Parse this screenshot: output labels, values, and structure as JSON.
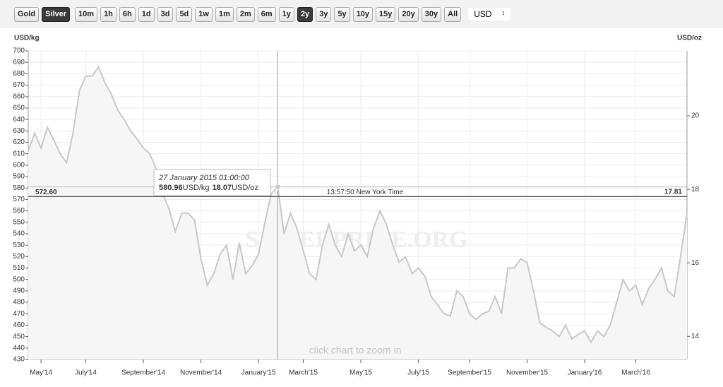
{
  "toolbar": {
    "buttons": [
      {
        "label": "Gold",
        "active": false
      },
      {
        "label": "Silver",
        "active": true
      },
      {
        "label": "10m",
        "active": false
      },
      {
        "label": "1h",
        "active": false
      },
      {
        "label": "6h",
        "active": false
      },
      {
        "label": "1d",
        "active": false
      },
      {
        "label": "3d",
        "active": false
      },
      {
        "label": "5d",
        "active": false
      },
      {
        "label": "1w",
        "active": false
      },
      {
        "label": "1m",
        "active": false
      },
      {
        "label": "2m",
        "active": false
      },
      {
        "label": "6m",
        "active": false
      },
      {
        "label": "1y",
        "active": false
      },
      {
        "label": "2y",
        "active": true
      },
      {
        "label": "3y",
        "active": false
      },
      {
        "label": "5y",
        "active": false
      },
      {
        "label": "10y",
        "active": false
      },
      {
        "label": "15y",
        "active": false
      },
      {
        "label": "20y",
        "active": false
      },
      {
        "label": "30y",
        "active": false
      },
      {
        "label": "All",
        "active": false
      }
    ],
    "currency": "USD"
  },
  "chart_data": {
    "type": "line",
    "y_axis_label": "USD/kg",
    "y2_axis_label": "USD/oz",
    "watermark": "SILVERPRICE.ORG",
    "hint": "click chart to zoom in",
    "categories": [
      null,
      null,
      "May'14",
      null,
      null,
      null,
      null,
      null,
      null,
      "July'14",
      null,
      null,
      null,
      null,
      null,
      null,
      null,
      null,
      "September'14",
      null,
      null,
      null,
      null,
      null,
      null,
      null,
      null,
      "November'14",
      null,
      null,
      null,
      null,
      null,
      null,
      null,
      null,
      "January'15",
      null,
      null,
      null,
      null,
      null,
      null,
      "March'15",
      null,
      null,
      null,
      null,
      null,
      null,
      null,
      null,
      "May'15",
      null,
      null,
      null,
      null,
      null,
      null,
      null,
      null,
      "July'15",
      null,
      null,
      null,
      null,
      null,
      null,
      null,
      "September'15",
      null,
      null,
      null,
      null,
      null,
      null,
      null,
      null,
      "November'15",
      null,
      null,
      null,
      null,
      null,
      null,
      null,
      null,
      "January'16",
      null,
      null,
      null,
      null,
      null,
      null,
      null,
      "March'16",
      null,
      null,
      null,
      null,
      null,
      null,
      null,
      null
    ],
    "series": [
      {
        "color": "#c8c8c8",
        "values": [
          612,
          628,
          615,
          633,
          622,
          610,
          602,
          628,
          665,
          678,
          678,
          686,
          672,
          662,
          648,
          640,
          630,
          623,
          615,
          610,
          597,
          575,
          562,
          542,
          558,
          558,
          552,
          518,
          495,
          505,
          522,
          530,
          500,
          532,
          505,
          512,
          522,
          550,
          575,
          580.96,
          540,
          558,
          545,
          525,
          505,
          500,
          530,
          548,
          530,
          520,
          540,
          525,
          530,
          520,
          545,
          560,
          548,
          530,
          515,
          520,
          505,
          510,
          503,
          485,
          478,
          470,
          468,
          490,
          485,
          470,
          465,
          470,
          472,
          485,
          470,
          510,
          510,
          518,
          515,
          490,
          462,
          458,
          455,
          450,
          460,
          448,
          452,
          455,
          445,
          455,
          450,
          460,
          480,
          500,
          490,
          495,
          478,
          492,
          500,
          510,
          490,
          485,
          520,
          558
        ]
      }
    ],
    "ylim": [
      430,
      700
    ],
    "yticks": [
      430,
      440,
      450,
      460,
      470,
      480,
      490,
      500,
      510,
      520,
      530,
      540,
      550,
      560,
      570,
      580,
      590,
      600,
      610,
      620,
      630,
      640,
      650,
      660,
      670,
      680,
      690,
      700
    ],
    "y2lim": [
      13.37,
      21.77
    ],
    "y2ticks": [
      14,
      16,
      18,
      20
    ],
    "grid": true,
    "current_price": {
      "value": 572.6,
      "label": "572.60",
      "oz_value": 17.81,
      "time": "13:57:50 New York Time"
    },
    "tooltip": {
      "index": 39,
      "date": "27 January 2015 01:00:00",
      "kg_value": 580.96,
      "kg_unit": "USD/kg",
      "oz_value": 18.07,
      "oz_unit": "USD/oz"
    }
  }
}
